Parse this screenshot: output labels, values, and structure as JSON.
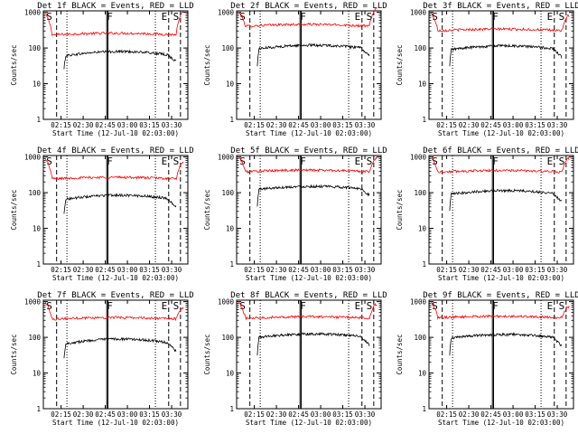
{
  "figure": {
    "background": "#ffffff"
  },
  "chart_data": [
    {
      "type": "line",
      "scale": "log-y",
      "title": "Det 1f BLACK = Events, RED = LLD",
      "xlabel": "Start Time (12-Jul-10 02:03:00)",
      "ylabel": "Counts/sec",
      "x_ticks": [
        "02:15",
        "02:30",
        "02:45",
        "03:00",
        "03:15",
        "03:30"
      ],
      "y_ticks": [
        "1",
        "10",
        "100",
        "1000"
      ],
      "ylim": [
        1,
        1100
      ],
      "markers": [
        "S",
        "F",
        "E",
        "S"
      ],
      "series": [
        {
          "color": "#ff0000",
          "level": 230,
          "start_level": 900,
          "end_level": 320,
          "bump": 30
        },
        {
          "color": "#000000",
          "level": 60,
          "start_level": 25,
          "end_level": 42,
          "bump": 20
        }
      ]
    },
    {
      "type": "line",
      "scale": "log-y",
      "title": "Det 2f BLACK = Events, RED = LLD",
      "xlabel": "Start Time (12-Jul-10 02:03:00)",
      "ylabel": "Counts/sec",
      "x_ticks": [
        "02:15",
        "02:30",
        "02:45",
        "03:00",
        "03:15",
        "03:30"
      ],
      "y_ticks": [
        "1",
        "10",
        "100",
        "1000"
      ],
      "ylim": [
        1,
        1100
      ],
      "markers": [
        "S",
        "F",
        "E",
        "S"
      ],
      "series": [
        {
          "color": "#ff0000",
          "level": 400,
          "start_level": 1000,
          "end_level": 420,
          "bump": 60
        },
        {
          "color": "#000000",
          "level": 95,
          "start_level": 30,
          "end_level": 60,
          "bump": 25
        }
      ]
    },
    {
      "type": "line",
      "scale": "log-y",
      "title": "Det 3f BLACK = Events, RED = LLD",
      "xlabel": "Start Time (12-Jul-10 02:03:00)",
      "ylabel": "Counts/sec",
      "x_ticks": [
        "02:15",
        "02:30",
        "02:45",
        "03:00",
        "03:15",
        "03:30"
      ],
      "y_ticks": [
        "1",
        "10",
        "100",
        "1000"
      ],
      "ylim": [
        1,
        1100
      ],
      "markers": [
        "S",
        "F",
        "E",
        "S"
      ],
      "series": [
        {
          "color": "#ff0000",
          "level": 300,
          "start_level": 950,
          "end_level": 260,
          "bump": 40
        },
        {
          "color": "#000000",
          "level": 90,
          "start_level": 30,
          "end_level": 55,
          "bump": 25
        }
      ]
    },
    {
      "type": "line",
      "scale": "log-y",
      "title": "Det 4f BLACK = Events, RED = LLD",
      "xlabel": "Start Time (12-Jul-10 02:03:00)",
      "ylabel": "Counts/sec",
      "x_ticks": [
        "02:15",
        "02:30",
        "02:45",
        "03:00",
        "03:15",
        "03:30"
      ],
      "y_ticks": [
        "1",
        "10",
        "100",
        "1000"
      ],
      "ylim": [
        1,
        1100
      ],
      "markers": [
        "S",
        "F",
        "E",
        "S"
      ],
      "series": [
        {
          "color": "#ff0000",
          "level": 240,
          "start_level": 900,
          "end_level": 220,
          "bump": 30
        },
        {
          "color": "#000000",
          "level": 65,
          "start_level": 25,
          "end_level": 38,
          "bump": 20
        }
      ]
    },
    {
      "type": "line",
      "scale": "log-y",
      "title": "Det 5f BLACK = Events, RED = LLD",
      "xlabel": "Start Time (12-Jul-10 02:03:00)",
      "ylabel": "Counts/sec",
      "x_ticks": [
        "02:15",
        "02:30",
        "02:45",
        "03:00",
        "03:15",
        "03:30"
      ],
      "y_ticks": [
        "1",
        "10",
        "100",
        "1000"
      ],
      "ylim": [
        1,
        1100
      ],
      "markers": [
        "S",
        "F",
        "E",
        "S"
      ],
      "series": [
        {
          "color": "#ff0000",
          "level": 380,
          "start_level": 1000,
          "end_level": 300,
          "bump": 50
        },
        {
          "color": "#000000",
          "level": 125,
          "start_level": 40,
          "end_level": 85,
          "bump": 25
        }
      ]
    },
    {
      "type": "line",
      "scale": "log-y",
      "title": "Det 6f BLACK = Events, RED = LLD",
      "xlabel": "Start Time (12-Jul-10 02:03:00)",
      "ylabel": "Counts/sec",
      "x_ticks": [
        "02:15",
        "02:30",
        "02:45",
        "03:00",
        "03:15",
        "03:30"
      ],
      "y_ticks": [
        "1",
        "10",
        "100",
        "1000"
      ],
      "ylim": [
        1,
        1100
      ],
      "markers": [
        "S",
        "F",
        "E",
        "S"
      ],
      "series": [
        {
          "color": "#ff0000",
          "level": 370,
          "start_level": 1000,
          "end_level": 300,
          "bump": 50
        },
        {
          "color": "#000000",
          "level": 90,
          "start_level": 30,
          "end_level": 55,
          "bump": 25
        }
      ]
    },
    {
      "type": "line",
      "scale": "log-y",
      "title": "Det 7f BLACK = Events, RED = LLD",
      "xlabel": "Start Time (12-Jul-10 02:03:00)",
      "ylabel": "Counts/sec",
      "x_ticks": [
        "02:15",
        "02:30",
        "02:45",
        "03:00",
        "03:15",
        "03:30"
      ],
      "y_ticks": [
        "1",
        "10",
        "100",
        "1000"
      ],
      "ylim": [
        1,
        1100
      ],
      "markers": [
        "S",
        "F",
        "E",
        "S"
      ],
      "series": [
        {
          "color": "#ff0000",
          "level": 320,
          "start_level": 950,
          "end_level": 230,
          "bump": 40
        },
        {
          "color": "#000000",
          "level": 65,
          "start_level": 25,
          "end_level": 40,
          "bump": 25
        }
      ]
    },
    {
      "type": "line",
      "scale": "log-y",
      "title": "Det 8f BLACK = Events, RED = LLD",
      "xlabel": "Start Time (12-Jul-10 02:03:00)",
      "ylabel": "Counts/sec",
      "x_ticks": [
        "02:15",
        "02:30",
        "02:45",
        "03:00",
        "03:15",
        "03:30"
      ],
      "y_ticks": [
        "1",
        "10",
        "100",
        "1000"
      ],
      "ylim": [
        1,
        1100
      ],
      "markers": [
        "S",
        "F",
        "E",
        "S"
      ],
      "series": [
        {
          "color": "#ff0000",
          "level": 340,
          "start_level": 950,
          "end_level": 280,
          "bump": 40
        },
        {
          "color": "#000000",
          "level": 100,
          "start_level": 30,
          "end_level": 60,
          "bump": 25
        }
      ]
    },
    {
      "type": "line",
      "scale": "log-y",
      "title": "Det 9f BLACK = Events, RED = LLD",
      "xlabel": "Start Time (12-Jul-10 02:03:00)",
      "ylabel": "Counts/sec",
      "x_ticks": [
        "02:15",
        "02:30",
        "02:45",
        "03:00",
        "03:15",
        "03:30"
      ],
      "y_ticks": [
        "1",
        "10",
        "100",
        "1000"
      ],
      "ylim": [
        1,
        1100
      ],
      "markers": [
        "S",
        "F",
        "E",
        "S"
      ],
      "series": [
        {
          "color": "#ff0000",
          "level": 350,
          "start_level": 950,
          "end_level": 240,
          "bump": 40
        },
        {
          "color": "#000000",
          "level": 95,
          "start_level": 30,
          "end_level": 55,
          "bump": 25
        }
      ]
    }
  ]
}
